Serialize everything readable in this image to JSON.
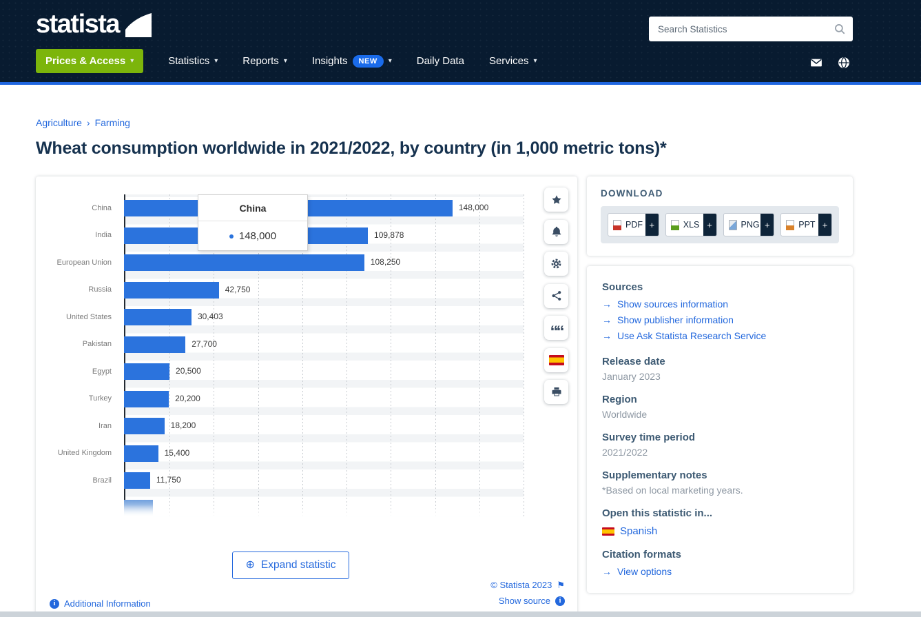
{
  "header": {
    "brand": "statista",
    "search_placeholder": "Search Statistics",
    "nav": [
      {
        "label": "Prices & Access",
        "dropdown": true,
        "style": "green"
      },
      {
        "label": "Statistics",
        "dropdown": true
      },
      {
        "label": "Reports",
        "dropdown": true
      },
      {
        "label": "Insights",
        "badge": "NEW",
        "dropdown": true
      },
      {
        "label": "Daily Data",
        "dropdown": false
      },
      {
        "label": "Services",
        "dropdown": true
      }
    ]
  },
  "breadcrumb": {
    "items": [
      "Agriculture",
      "Farming"
    ],
    "separator": "›"
  },
  "page_title": "Wheat consumption worldwide in 2021/2022, by country (in 1,000 metric tons)*",
  "chart_data": {
    "type": "bar",
    "orientation": "horizontal",
    "title": "Wheat consumption worldwide in 2021/2022, by country (in 1,000 metric tons)*",
    "categories": [
      "China",
      "India",
      "European Union",
      "Russia",
      "United States",
      "Pakistan",
      "Egypt",
      "Turkey",
      "Iran",
      "United Kingdom",
      "Brazil"
    ],
    "values": [
      148000,
      109878,
      108250,
      42750,
      30403,
      27700,
      20500,
      20200,
      18200,
      15400,
      11750
    ],
    "value_labels": [
      "148,000",
      "109,878",
      "108,250",
      "42,750",
      "30,403",
      "27,700",
      "20,500",
      "20,200",
      "18,200",
      "15,400",
      "11,750"
    ],
    "xlim": [
      0,
      180000
    ],
    "grid_interval": 20000,
    "grid": true,
    "legend": false,
    "bar_color": "#2b73dd",
    "partial_next_bar_visible": true,
    "tooltip": {
      "title": "China",
      "value": "148,000"
    }
  },
  "chart_card": {
    "expand_button": "Expand statistic",
    "expand_icon": "⊕",
    "additional_info": "Additional Information",
    "copyright": "© Statista 2023",
    "copyright_flag": "⚑",
    "show_source": "Show source"
  },
  "action_rail": [
    "favorite-star",
    "notification-bell",
    "settings-gear",
    "share",
    "citation-quote",
    "spanish-flag",
    "printer"
  ],
  "download": {
    "title": "DOWNLOAD",
    "plus": "+",
    "buttons": [
      {
        "label": "PDF",
        "icon": "pdf-file-icon",
        "color": "#c8342a"
      },
      {
        "label": "XLS",
        "icon": "xls-file-icon",
        "color": "#5a9e1f"
      },
      {
        "label": "PNG",
        "icon": "png-image-icon",
        "color": "pic"
      },
      {
        "label": "PPT",
        "icon": "ppt-file-icon",
        "color": "#d9822b"
      }
    ]
  },
  "details": {
    "sources_title": "Sources",
    "link_arrow": "→",
    "sources_links": [
      "Show sources information",
      "Show publisher information",
      "Use Ask Statista Research Service"
    ],
    "release_title": "Release date",
    "release_value": "January 2023",
    "region_title": "Region",
    "region_value": "Worldwide",
    "survey_title": "Survey time period",
    "survey_value": "2021/2022",
    "notes_title": "Supplementary notes",
    "notes_value": "*Based on local marketing years.",
    "open_in_title": "Open this statistic in...",
    "open_in_language": "Spanish",
    "citation_title": "Citation formats",
    "citation_link": "View options"
  }
}
